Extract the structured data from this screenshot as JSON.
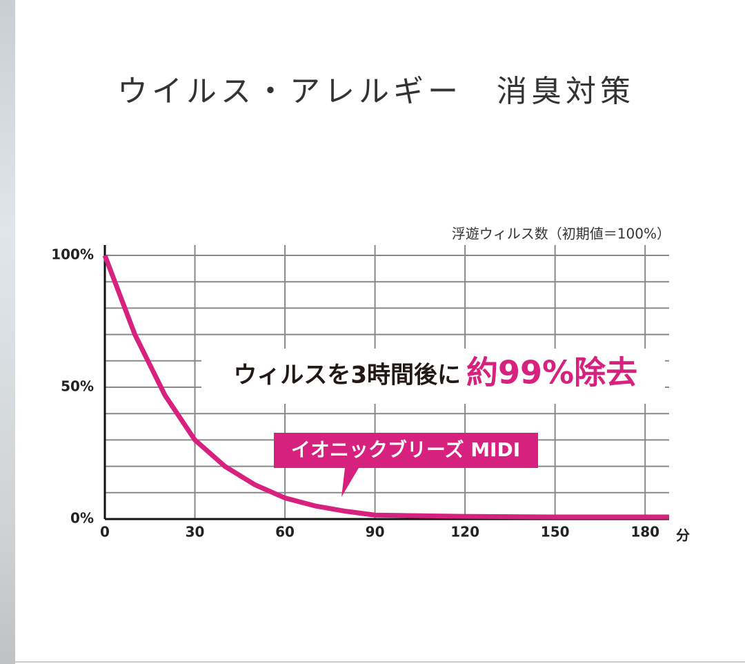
{
  "chart_data": {
    "type": "line",
    "title": "ウイルス・アレルギー　消臭対策",
    "y_label": "浮遊ウィルス数（初期値＝100%）",
    "x_unit": "分",
    "headline": "ウィルスを3時間後に",
    "headline_emphasis": "約99%除去",
    "callout": "イオニックブリーズ MIDI",
    "x": [
      0,
      10,
      20,
      30,
      40,
      50,
      60,
      70,
      80,
      90,
      120,
      150,
      180,
      188
    ],
    "series": [
      {
        "name": "イオニックブリーズ MIDI",
        "color": "#d6217f",
        "values": [
          100,
          70,
          47,
          30,
          20,
          13,
          8,
          5,
          3,
          1.5,
          1,
          0.8,
          0.8,
          0.8
        ]
      }
    ],
    "xlim": [
      0,
      188
    ],
    "ylim": [
      0,
      100
    ],
    "xticks": [
      0,
      30,
      60,
      90,
      120,
      150,
      180
    ],
    "yticks": [
      {
        "value": 0,
        "label": "0%"
      },
      {
        "value": 50,
        "label": "50%"
      },
      {
        "value": 100,
        "label": "100%"
      }
    ],
    "ygrid": [
      10,
      20,
      30,
      40,
      50,
      60,
      70,
      80,
      90,
      100
    ],
    "grid": true
  }
}
